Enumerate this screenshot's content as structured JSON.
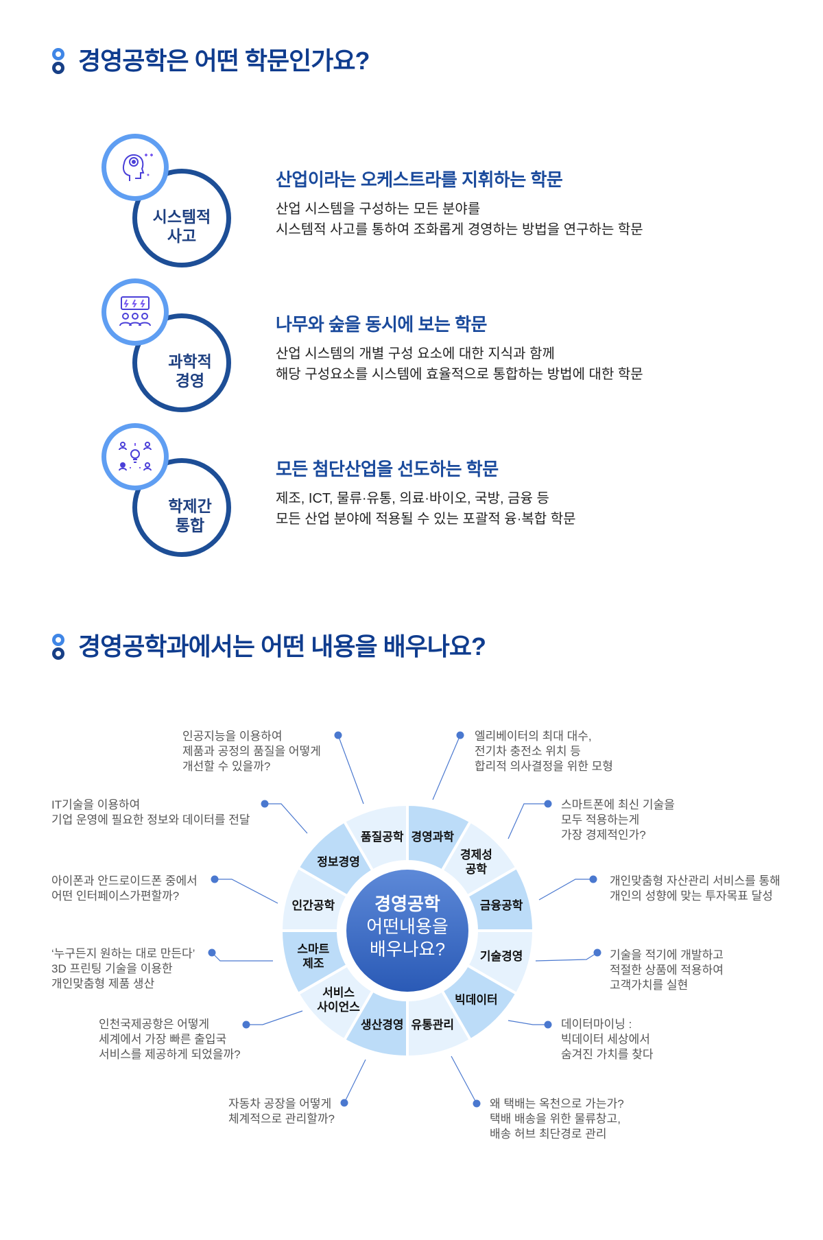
{
  "section1": {
    "title": "경영공학은 어떤 학문인가요?",
    "items": [
      {
        "icon": "head-gear-icon",
        "label": "시스템적\n사고",
        "heading": "산업이라는 오케스트라를 지휘하는 학문",
        "lines": [
          "산업 시스템을 구성하는 모든 분야를",
          "시스템적 사고를 통하여 조화롭게 경영하는 방법을 연구하는 학문"
        ]
      },
      {
        "icon": "team-idea-icon",
        "label": "과학적\n경영",
        "heading": "나무와 숲을 동시에 보는 학문",
        "lines": [
          "산업 시스템의 개별 구성 요소에 대한 지식과 함께",
          "해당 구성요소를 시스템에 효율적으로 통합하는 방법에 대한 학문"
        ]
      },
      {
        "icon": "network-people-icon",
        "label": "학제간\n통합",
        "heading": "모든 첨단산업을 선도하는 학문",
        "lines": [
          "제조, ICT, 물류·유통, 의료·바이오, 국방, 금융 등",
          "모든 산업 분야에 적용될 수 있는 포괄적 융·복합 학문"
        ]
      }
    ]
  },
  "section2": {
    "title": "경영공학과에서는 어떤 내용을 배우나요?",
    "center": {
      "line1": "경영공학",
      "line2": "어떤내용을",
      "line3": "배우나요?"
    },
    "colors": {
      "segment_dark": "#bcdcf8",
      "segment_light": "#e6f2fd",
      "center_top": "#5d89d8",
      "center_bottom": "#2a5ab6",
      "line": "#4a78cf"
    },
    "segments": [
      "경영과학",
      "경제성\n공학",
      "금융공학",
      "기술경영",
      "빅데이터",
      "유통관리",
      "생산경영",
      "서비스\n사이언스",
      "스마트\n제조",
      "인간공학",
      "정보경영",
      "품질공학"
    ],
    "callouts": [
      {
        "lines": [
          "인공지능을 이용하여",
          "제품과 공정의 품질을 어떻게",
          "개선할 수 있을까?"
        ]
      },
      {
        "lines": [
          "엘리베이터의 최대 대수,",
          "전기차 충전소 위치 등",
          "합리적 의사결정을 위한 모형"
        ]
      },
      {
        "lines": [
          "스마트폰에 최신 기술을",
          "모두 적용하는게",
          "가장 경제적인가?"
        ]
      },
      {
        "lines": [
          "개인맞춤형 자산관리 서비스를 통해",
          "개인의 성향에 맞는 투자목표 달성"
        ]
      },
      {
        "lines": [
          "기술을 적기에 개발하고",
          "적절한 상품에 적용하여",
          "고객가치를 실현"
        ]
      },
      {
        "lines": [
          "데이터마이닝 :",
          "빅데이터 세상에서",
          "숨겨진 가치를 찾다"
        ]
      },
      {
        "lines": [
          "왜 택배는 옥천으로 가는가?",
          "택배 배송을 위한 물류창고,",
          "배송 허브 최단경로 관리"
        ]
      },
      {
        "lines": [
          "자동차 공장을 어떻게",
          "체계적으로 관리할까?"
        ]
      },
      {
        "lines": [
          "인천국제공항은 어떻게",
          "세계에서 가장 빠른 출입국",
          "서비스를 제공하게 되었을까?"
        ]
      },
      {
        "lines": [
          "‘누구든지 원하는 대로 만든다’",
          "3D 프린팅 기술을 이용한",
          "개인맞춤형 제품 생산"
        ]
      },
      {
        "lines": [
          "아이폰과 안드로이드폰 중에서",
          "어떤 인터페이스가편할까?"
        ]
      },
      {
        "lines": [
          "IT기술을 이용하여",
          "기업 운영에 필요한 정보와 데이터를 전달"
        ]
      }
    ]
  }
}
